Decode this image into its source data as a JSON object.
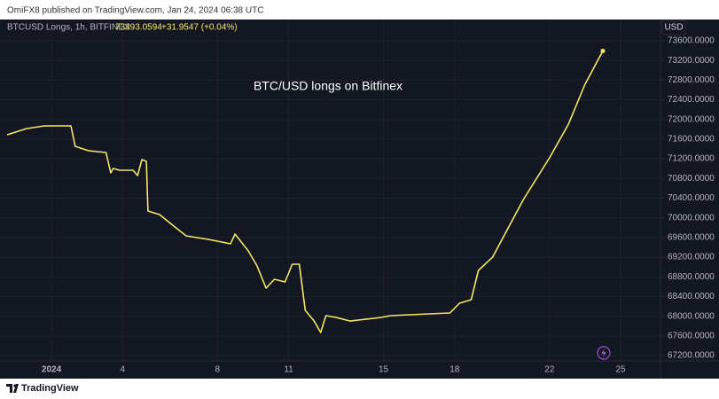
{
  "header": {
    "text": "OmiFX8 published on TradingView.com, Jan 24, 2024 06:38 UTC"
  },
  "footer": {
    "brand": "TradingView"
  },
  "chart_data": {
    "type": "line",
    "title": "BTC/USD longs on Bitfinex",
    "y_unit": "USD",
    "legend_last": "73393.0594",
    "legend_change": "+31.9547 (+0.04%)",
    "x": [
      -0.87,
      -0.05,
      0.7,
      1.82,
      2.0,
      2.57,
      3.3,
      3.5,
      3.6,
      3.88,
      4.44,
      4.63,
      4.81,
      5.0,
      5.07,
      5.56,
      6.3,
      6.68,
      7.62,
      8.55,
      8.74,
      9.3,
      9.67,
      10.05,
      10.4,
      10.85,
      11.15,
      11.45,
      11.7,
      12.08,
      12.35,
      12.57,
      13.0,
      13.6,
      14.9,
      15.3,
      16.9,
      17.8,
      18.2,
      18.7,
      19.0,
      19.6,
      20.0,
      20.9,
      22.0,
      22.8,
      23.5,
      24.25
    ],
    "series": [
      {
        "name": "BTCUSD Longs, 1h, BITFINEX",
        "color": "#f5e663",
        "values": [
          71689,
          71815,
          71869,
          71869,
          71455,
          71364,
          71328,
          70914,
          71004,
          70968,
          70968,
          70860,
          71184,
          71148,
          70138,
          70066,
          69778,
          69633,
          69561,
          69471,
          69669,
          69327,
          69020,
          68570,
          68750,
          68696,
          69056,
          69056,
          68119,
          67902,
          67668,
          68011,
          67975,
          67902,
          67975,
          68011,
          68047,
          68065,
          68263,
          68335,
          68930,
          69200,
          69561,
          70373,
          71220,
          71905,
          72716,
          73393
        ]
      }
    ],
    "xlim": [
      -1.17,
      26.68
    ],
    "xticks": [
      {
        "value": 1,
        "label": "2024"
      },
      4,
      8,
      11,
      15,
      18,
      22,
      25
    ],
    "ylim": [
      67092,
      74032
    ],
    "yticks": [
      {
        "value": 67200,
        "label": "67200.0000"
      },
      {
        "value": 67600,
        "label": "67600.0000"
      },
      {
        "value": 68000,
        "label": "68000.0000"
      },
      {
        "value": 68400,
        "label": "68400.0000"
      },
      {
        "value": 68800,
        "label": "68800.0000"
      },
      {
        "value": 69200,
        "label": "69200.0000"
      },
      {
        "value": 69600,
        "label": "69600.0000"
      },
      {
        "value": 70000,
        "label": "70000.0000"
      },
      {
        "value": 70400,
        "label": "70400.0000"
      },
      {
        "value": 70800,
        "label": "70800.0000"
      },
      {
        "value": 71200,
        "label": "71200.0000"
      },
      {
        "value": 71600,
        "label": "71600.0000"
      },
      {
        "value": 72000,
        "label": "72000.0000"
      },
      {
        "value": 72400,
        "label": "72400.0000"
      },
      {
        "value": 72800,
        "label": "72800.0000"
      },
      {
        "value": 73200,
        "label": "73200.0000"
      },
      {
        "value": 73600,
        "label": "73600.0000"
      }
    ],
    "grid": true
  }
}
